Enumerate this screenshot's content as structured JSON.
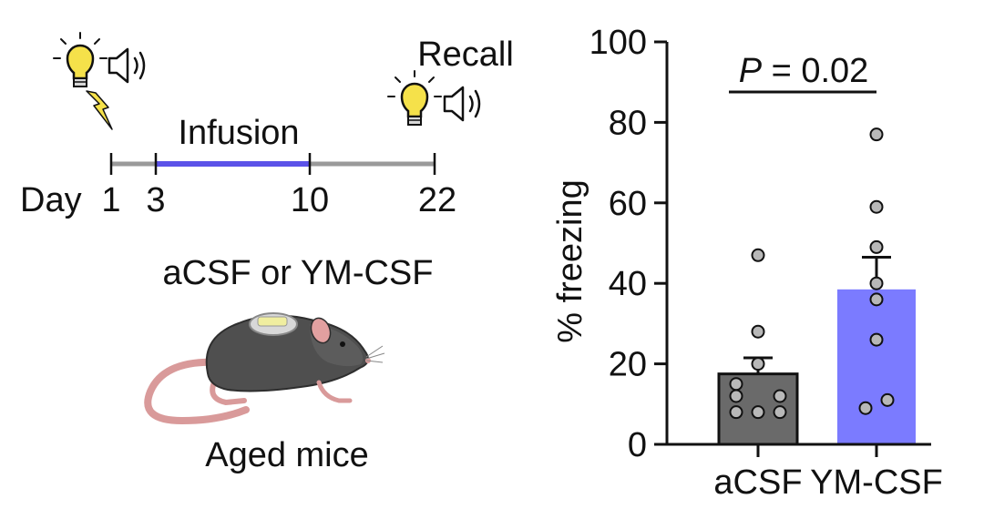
{
  "schematic": {
    "timeline": {
      "day_prefix": "Day",
      "days": [
        "1",
        "3",
        "10",
        "22"
      ],
      "infusion_label": "Infusion",
      "recall_label": "Recall"
    },
    "treatment_label": "aCSF or YM-CSF",
    "subject_label": "Aged mice",
    "icons": [
      "lightbulb-icon",
      "speaker-icon",
      "lightning-icon",
      "mouse-illustration"
    ],
    "colors": {
      "infusion": "#5b52e8",
      "timeline": "#9a9a9a",
      "bulb": "#f5e14a"
    }
  },
  "chart_data": {
    "type": "bar",
    "ylabel": "% freezing",
    "ylim": [
      0,
      100
    ],
    "yticks": [
      "0",
      "20",
      "40",
      "60",
      "80",
      "100"
    ],
    "categories": [
      "aCSF",
      "YM-CSF"
    ],
    "values": [
      17.5,
      38.5
    ],
    "sem": [
      4,
      8
    ],
    "points": [
      [
        47,
        28,
        20,
        15,
        12,
        12,
        8,
        8,
        8
      ],
      [
        77,
        59,
        49,
        40,
        36,
        26,
        11,
        9
      ]
    ],
    "colors": [
      "#6a6a6a",
      "#7b7bff"
    ],
    "significance": {
      "prefix": "P",
      "text": " = 0.02"
    }
  }
}
